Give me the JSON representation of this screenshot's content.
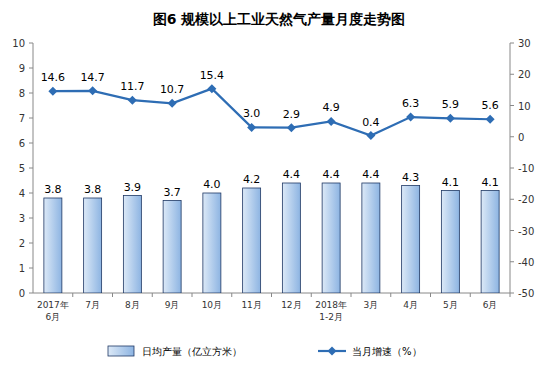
{
  "chart_data": {
    "type": "bar",
    "title": "图6 规模以上工业天然气产量月度走势图",
    "categories": [
      "2017年6月",
      "7月",
      "8月",
      "9月",
      "10月",
      "11月",
      "12月",
      "2018年1-2月",
      "3月",
      "4月",
      "5月",
      "6月"
    ],
    "series": [
      {
        "name": "日均产量（亿立方米）",
        "type": "bar",
        "color": "#8db4e2",
        "values": [
          3.8,
          3.8,
          3.9,
          3.7,
          4.0,
          4.2,
          4.4,
          4.4,
          4.4,
          4.3,
          4.1,
          4.1
        ],
        "value_labels": [
          "3.8",
          "3.8",
          "3.9",
          "3.7",
          "4.0",
          "4.2",
          "4.4",
          "4.4",
          "4.4",
          "4.3",
          "4.1",
          "4.1"
        ]
      },
      {
        "name": "当月增速（%）",
        "type": "line",
        "axis": "y2",
        "color": "#2e6db4",
        "marker": "diamond",
        "values": [
          14.6,
          14.7,
          11.7,
          10.7,
          15.4,
          3.0,
          2.9,
          4.9,
          0.4,
          6.3,
          5.9,
          5.6
        ],
        "value_labels": [
          "14.6",
          "14.7",
          "11.7",
          "10.7",
          "15.4",
          "3.0",
          "2.9",
          "4.9",
          "0.4",
          "6.3",
          "5.9",
          "5.6"
        ]
      }
    ],
    "ylim": [
      0,
      10
    ],
    "yticks": [
      0,
      1,
      2,
      3,
      4,
      5,
      6,
      7,
      8,
      9,
      10
    ],
    "y2lim": [
      -50,
      30
    ],
    "y2ticks": [
      -50,
      -40,
      -30,
      -20,
      -10,
      0,
      10,
      20,
      30
    ],
    "grid": false,
    "legend": "bottom",
    "data_labels": true
  }
}
